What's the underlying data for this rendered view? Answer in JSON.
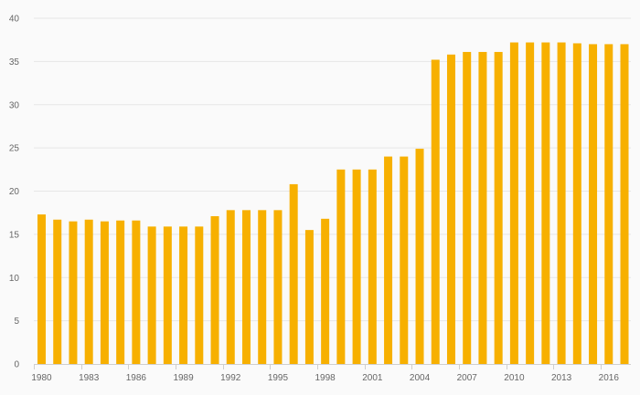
{
  "chart_data": {
    "type": "bar",
    "title": "",
    "xlabel": "",
    "ylabel": "",
    "categories": [
      "1980",
      "1981",
      "1982",
      "1983",
      "1984",
      "1985",
      "1986",
      "1987",
      "1988",
      "1989",
      "1990",
      "1991",
      "1992",
      "1993",
      "1994",
      "1995",
      "1996",
      "1997",
      "1998",
      "1999",
      "2000",
      "2001",
      "2002",
      "2003",
      "2004",
      "2005",
      "2006",
      "2007",
      "2008",
      "2009",
      "2010",
      "2011",
      "2012",
      "2013",
      "2014",
      "2015",
      "2016",
      "2017"
    ],
    "values": [
      17.3,
      16.7,
      16.5,
      16.7,
      16.5,
      16.6,
      16.6,
      15.9,
      15.9,
      15.9,
      15.9,
      17.1,
      17.8,
      17.8,
      17.8,
      17.8,
      20.8,
      15.5,
      16.8,
      22.5,
      22.5,
      22.5,
      24.0,
      24.0,
      24.9,
      35.2,
      35.8,
      36.1,
      36.1,
      36.1,
      37.2,
      37.2,
      37.2,
      37.2,
      37.1,
      37.0,
      37.0,
      37.0
    ],
    "x_tick_labels": [
      "1980",
      "1983",
      "1986",
      "1989",
      "1992",
      "1995",
      "1998",
      "2001",
      "2004",
      "2007",
      "2010",
      "2013",
      "2016"
    ],
    "y_tick_labels": [
      "0",
      "5",
      "10",
      "15",
      "20",
      "25",
      "30",
      "35",
      "40"
    ],
    "ylim": [
      0,
      40
    ],
    "y_tick_step": 5,
    "grid": true,
    "legend": "none",
    "colors": {
      "bar": "#f7b000",
      "grid": "#e6e6e6",
      "axis": "#cfcfcf",
      "tick_text": "#666666",
      "background": "#fafafa"
    }
  }
}
